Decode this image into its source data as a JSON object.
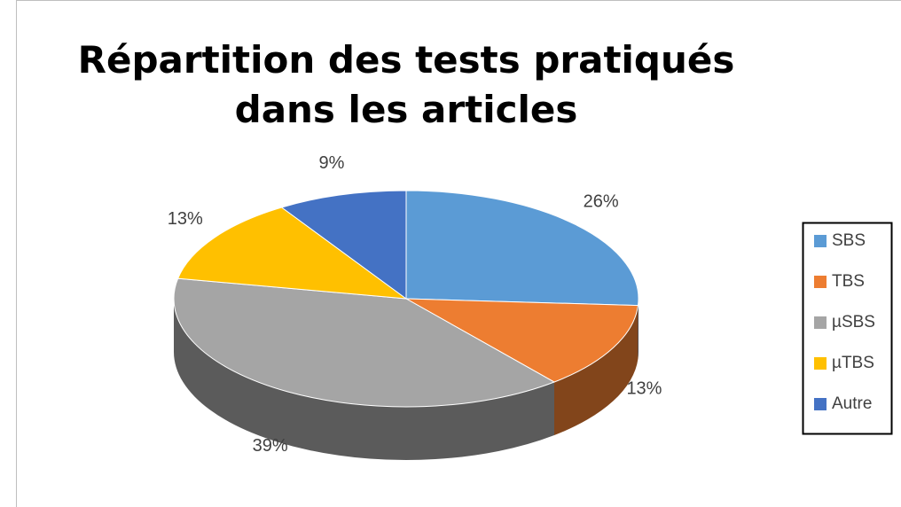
{
  "chart_data": {
    "type": "pie3d",
    "title": "Répartition des tests pratiqués dans les articles",
    "categories": [
      "SBS",
      "TBS",
      "µSBS",
      "µTBS",
      "Autre"
    ],
    "values": [
      26,
      13,
      39,
      13,
      9
    ],
    "value_labels": [
      "26%",
      "13%",
      "39%",
      "13%",
      "9%"
    ],
    "colors": [
      "#5b9bd5",
      "#ed7d31",
      "#a5a5a5",
      "#ffc000",
      "#4472c4"
    ],
    "legend": "right"
  }
}
